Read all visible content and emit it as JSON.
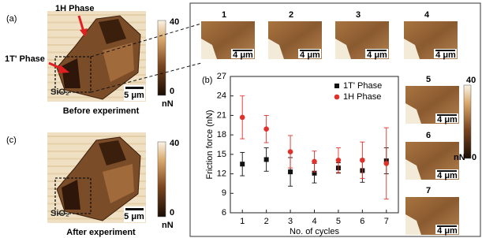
{
  "figure": {
    "panel_a": {
      "label": "(a)",
      "annotations": [
        "1H Phase",
        "1T' Phase"
      ],
      "substrate": "SiO₂",
      "scale": "5 μm",
      "colorbar": {
        "max": 40,
        "min": 0,
        "unit": "nN"
      },
      "caption": "Before experiment"
    },
    "panel_c": {
      "label": "(c)",
      "substrate": "SiO₂",
      "scale": "5 μm",
      "colorbar": {
        "max": 40,
        "min": 0,
        "unit": "nN"
      },
      "caption": "After experiment"
    },
    "panel_b": {
      "label": "(b)",
      "thumbnails": [
        {
          "label": "1",
          "scale": "4 μm"
        },
        {
          "label": "2",
          "scale": "4 μm"
        },
        {
          "label": "3",
          "scale": "4 μm"
        },
        {
          "label": "4",
          "scale": "4 μm"
        },
        {
          "label": "5",
          "scale": "4 μm"
        },
        {
          "label": "6",
          "scale": "4 μm"
        },
        {
          "label": "7",
          "scale": "4 μm"
        }
      ],
      "colorbar": {
        "max": 40,
        "min": 0,
        "unit": "nN"
      }
    }
  },
  "chart_data": {
    "type": "scatter",
    "x_label": "No. of cycles",
    "y_label": "Friction force (nN)",
    "x": [
      1,
      2,
      3,
      4,
      5,
      6,
      7
    ],
    "series": [
      {
        "name": "1T' Phase",
        "color": "#111111",
        "marker": "square",
        "values": [
          13.5,
          14.2,
          12.3,
          12.1,
          12.9,
          12.5,
          14.0
        ],
        "errors": [
          1.8,
          1.8,
          2.2,
          1.5,
          0.8,
          1.8,
          2.0
        ]
      },
      {
        "name": "1H Phase",
        "color": "#e0312a",
        "marker": "circle",
        "values": [
          20.7,
          18.9,
          15.4,
          13.9,
          14.1,
          14.1,
          13.6
        ],
        "errors": [
          3.3,
          2.1,
          2.5,
          1.6,
          1.9,
          2.8,
          5.5
        ]
      }
    ],
    "xlim": [
      0.5,
      7.5
    ],
    "ylim": [
      6,
      27
    ],
    "xticks": [
      1,
      2,
      3,
      4,
      5,
      6,
      7
    ],
    "yticks": [
      6,
      9,
      12,
      15,
      18,
      21,
      24,
      27
    ],
    "legend": "upper right"
  }
}
